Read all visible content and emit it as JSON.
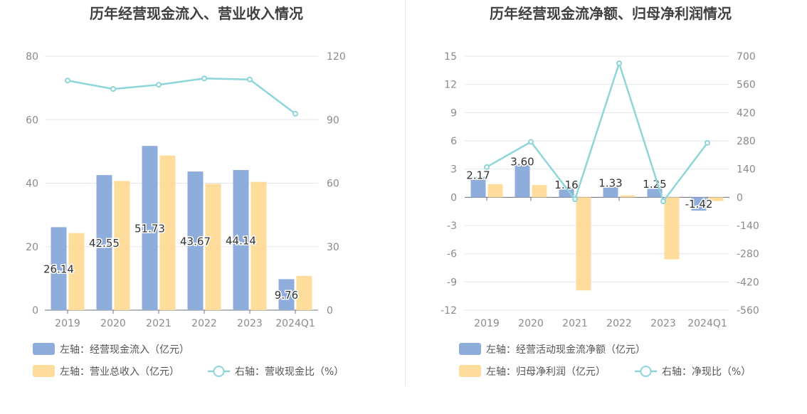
{
  "colors": {
    "bar_primary": "#8eaddb",
    "bar_secondary": "#fedc9c",
    "line": "#8dd5d9",
    "grid": "#e3e6ee",
    "title": "#404040",
    "axis_text": "#8a8a8a",
    "label": "#333333"
  },
  "chart_data": [
    {
      "type": "bar",
      "title": "历年经营现金流入、营业收入情况",
      "categories": [
        "2019",
        "2020",
        "2021",
        "2022",
        "2023",
        "2024Q1"
      ],
      "y_left": {
        "ticks": [
          "80",
          "60",
          "40",
          "20",
          "0"
        ],
        "ylim": [
          0,
          80
        ]
      },
      "y_right": {
        "ticks": [
          "120",
          "90",
          "60",
          "30",
          "0"
        ],
        "ylim": [
          0,
          120
        ]
      },
      "series": [
        {
          "name": "左轴：经营现金流入（亿元）",
          "axis": "left",
          "kind": "bar",
          "values": [
            26.14,
            42.55,
            51.73,
            43.67,
            44.14,
            9.76
          ],
          "labels": [
            "26.14",
            "42.55",
            "51.73",
            "43.67",
            "44.14",
            "9.76"
          ]
        },
        {
          "name": "左轴：营业总收入（亿元）",
          "axis": "left",
          "kind": "bar",
          "values": [
            24.3,
            40.7,
            48.7,
            39.8,
            40.4,
            10.8
          ]
        },
        {
          "name": "右轴：营收现金比（%）",
          "axis": "right",
          "kind": "line",
          "values": [
            108.5,
            104.5,
            106.5,
            109.5,
            109.0,
            92.8
          ]
        }
      ],
      "legend_position": "bottom-left"
    },
    {
      "type": "bar",
      "title": "历年经营现金流净额、归母净利润情况",
      "categories": [
        "2019",
        "2020",
        "2021",
        "2022",
        "2023",
        "2024Q1"
      ],
      "y_left": {
        "ticks": [
          "15",
          "12",
          "9",
          "6",
          "3",
          "0",
          "-3",
          "-6",
          "-9",
          "-12"
        ],
        "ylim": [
          -12,
          15
        ]
      },
      "y_right": {
        "ticks": [
          "700",
          "560",
          "420",
          "280",
          "140",
          "0",
          "-140",
          "-280",
          "-420",
          "-560"
        ],
        "ylim": [
          -560,
          700
        ]
      },
      "series": [
        {
          "name": "左轴：经营活动现金流净额（亿元）",
          "axis": "left",
          "kind": "bar",
          "values": [
            2.17,
            3.6,
            1.16,
            1.33,
            1.25,
            -1.42
          ],
          "labels": [
            "2.17",
            "3.60",
            "1.16",
            "1.33",
            "1.25",
            "-1.42"
          ]
        },
        {
          "name": "左轴：归母净利润（亿元）",
          "axis": "left",
          "kind": "bar",
          "values": [
            1.4,
            1.3,
            -9.9,
            0.2,
            -6.6,
            -0.4
          ]
        },
        {
          "name": "右轴：净现比（%）",
          "axis": "right",
          "kind": "line",
          "values": [
            150,
            275,
            -10,
            665,
            -20,
            270
          ]
        }
      ],
      "legend_position": "bottom-left"
    }
  ]
}
